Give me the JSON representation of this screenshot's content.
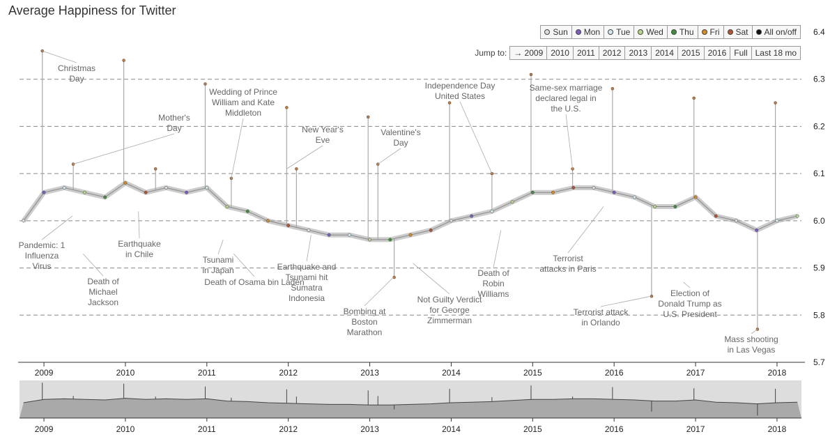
{
  "title": "Average Happiness for Twitter",
  "day_buttons": [
    {
      "label": "Sun",
      "color": "#dddddd"
    },
    {
      "label": "Mon",
      "color": "#7b5cc4"
    },
    {
      "label": "Tue",
      "color": "#cfe9ef"
    },
    {
      "label": "Wed",
      "color": "#b7d88a"
    },
    {
      "label": "Thu",
      "color": "#3f8f3a"
    },
    {
      "label": "Fri",
      "color": "#d98c1f"
    },
    {
      "label": "Sat",
      "color": "#b5542f"
    },
    {
      "label": "All on/off",
      "color": "#111111"
    }
  ],
  "jump": {
    "label": "Jump to:",
    "options": [
      "→ 2009",
      "2010",
      "2011",
      "2012",
      "2013",
      "2014",
      "2015",
      "2016",
      "Full",
      "Last 18 mo"
    ]
  },
  "chart_data": {
    "type": "line",
    "title": "Average Happiness for Twitter",
    "xlabel": "",
    "ylabel": "",
    "x_ticks": [
      "2009",
      "2010",
      "2011",
      "2012",
      "2013",
      "2014",
      "2015",
      "2016",
      "2017",
      "2018"
    ],
    "y_ticks": [
      "5.7",
      "5.8",
      "5.9",
      "6.0",
      "6.1",
      "6.2",
      "6.3",
      "6.4"
    ],
    "ylim": [
      5.7,
      6.4
    ],
    "xlim": [
      2008.7,
      2018.3
    ],
    "grid": "horizontal dashed",
    "series": [
      {
        "values": [
          [
            2008.75,
            6.0
          ],
          [
            2009.0,
            6.06
          ],
          [
            2009.25,
            6.07
          ],
          [
            2009.5,
            6.06
          ],
          [
            2009.75,
            6.05
          ],
          [
            2010.0,
            6.08
          ],
          [
            2010.25,
            6.06
          ],
          [
            2010.5,
            6.07
          ],
          [
            2010.75,
            6.06
          ],
          [
            2011.0,
            6.07
          ],
          [
            2011.25,
            6.03
          ],
          [
            2011.5,
            6.02
          ],
          [
            2011.75,
            6.0
          ],
          [
            2012.0,
            5.99
          ],
          [
            2012.25,
            5.98
          ],
          [
            2012.5,
            5.97
          ],
          [
            2012.75,
            5.97
          ],
          [
            2013.0,
            5.96
          ],
          [
            2013.25,
            5.96
          ],
          [
            2013.5,
            5.97
          ],
          [
            2013.75,
            5.98
          ],
          [
            2014.0,
            6.0
          ],
          [
            2014.25,
            6.01
          ],
          [
            2014.5,
            6.02
          ],
          [
            2014.75,
            6.04
          ],
          [
            2015.0,
            6.06
          ],
          [
            2015.25,
            6.06
          ],
          [
            2015.5,
            6.07
          ],
          [
            2015.75,
            6.07
          ],
          [
            2016.0,
            6.06
          ],
          [
            2016.25,
            6.05
          ],
          [
            2016.5,
            6.03
          ],
          [
            2016.75,
            6.03
          ],
          [
            2017.0,
            6.05
          ],
          [
            2017.25,
            6.01
          ],
          [
            2017.5,
            6.0
          ],
          [
            2017.75,
            5.98
          ],
          [
            2018.0,
            6.0
          ],
          [
            2018.25,
            6.01
          ]
        ]
      }
    ],
    "spikes": [
      [
        2008.98,
        6.36
      ],
      [
        2009.98,
        6.34
      ],
      [
        2010.98,
        6.29
      ],
      [
        2011.98,
        6.24
      ],
      [
        2012.98,
        6.22
      ],
      [
        2013.98,
        6.25
      ],
      [
        2014.98,
        6.31
      ],
      [
        2015.98,
        6.28
      ],
      [
        2016.98,
        6.26
      ],
      [
        2017.98,
        6.25
      ],
      [
        2009.36,
        6.12
      ],
      [
        2010.37,
        6.11
      ],
      [
        2011.3,
        6.09
      ],
      [
        2012.1,
        6.11
      ],
      [
        2013.1,
        6.12
      ],
      [
        2014.5,
        6.1
      ],
      [
        2015.49,
        6.11
      ],
      [
        2016.46,
        5.84
      ],
      [
        2017.76,
        5.77
      ],
      [
        2013.3,
        5.88
      ]
    ],
    "annotations": [
      {
        "text": "Christmas Day",
        "x": 2008.98,
        "y": 6.36
      },
      {
        "text": "Mother's Day",
        "x": 2009.36,
        "y": 6.12
      },
      {
        "text": "Wedding of Prince William and Kate Middleton",
        "x": 2011.3,
        "y": 6.09
      },
      {
        "text": "New Year's Eve",
        "x": 2011.98,
        "y": 6.11
      },
      {
        "text": "Valentine's Day",
        "x": 2013.1,
        "y": 6.12
      },
      {
        "text": "Independence Day United States",
        "x": 2014.5,
        "y": 6.1
      },
      {
        "text": "Same-sex marriage declared legal in the U.S.",
        "x": 2015.49,
        "y": 6.11
      },
      {
        "text": "Pandemic: 1 Influenza Virus",
        "x": 2009.35,
        "y": 6.01
      },
      {
        "text": "Death of Michael Jackson",
        "x": 2009.48,
        "y": 5.93
      },
      {
        "text": "Earthquake in Chile",
        "x": 2010.16,
        "y": 6.02
      },
      {
        "text": "Tsunami in Japan",
        "x": 2011.2,
        "y": 5.96
      },
      {
        "text": "Death of Osama bin Laden",
        "x": 2011.33,
        "y": 5.93
      },
      {
        "text": "Earthquake and Tsunami hit Sumatra Indonesia",
        "x": 2012.28,
        "y": 5.97
      },
      {
        "text": "Bombing at Boston Marathon",
        "x": 2013.29,
        "y": 5.88
      },
      {
        "text": "Not Guilty Verdict for George Zimmerman",
        "x": 2013.53,
        "y": 5.91
      },
      {
        "text": "Death of Robin Williams",
        "x": 2014.61,
        "y": 5.98
      },
      {
        "text": "Terrorist attacks in Paris",
        "x": 2015.87,
        "y": 6.03
      },
      {
        "text": "Terrorist attack in Orlando",
        "x": 2016.45,
        "y": 5.84
      },
      {
        "text": "Election of Donald Trump as U.S. President",
        "x": 2016.85,
        "y": 5.87
      },
      {
        "text": "Mass shooting in Las Vegas",
        "x": 2017.76,
        "y": 5.77
      }
    ]
  }
}
